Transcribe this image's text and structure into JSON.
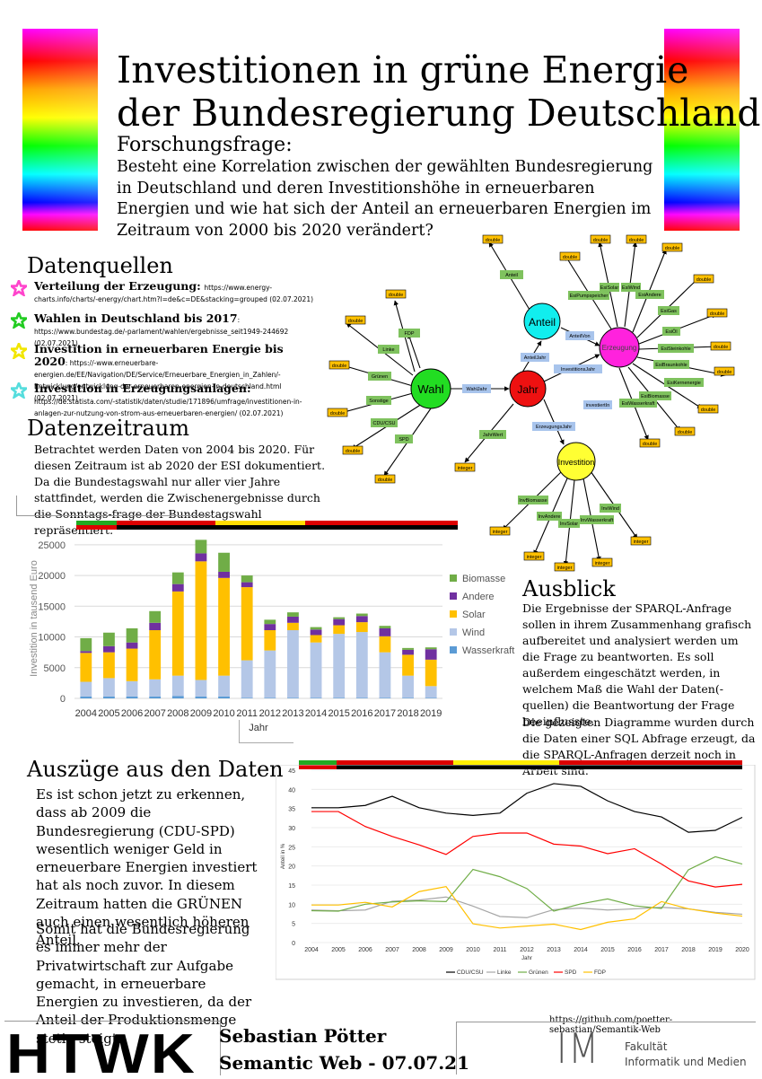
{
  "header": {
    "title_line1": "Investitionen in grüne Energie",
    "title_line2": "der Bundesregierung Deutschland",
    "question_heading": "Forschungsfrage:",
    "question_text": "Besteht eine Korrelation zwischen der gewählten Bundesregierung in Deutschland und deren Investitionshöhe in erneuerbaren Energien und wie hat sich der Anteil an erneuerbaren Energien im Zeitraum von 2000 bis 2020 verändert?"
  },
  "sources": {
    "heading": "Datenquellen",
    "items": [
      {
        "label": "Verteilung der Erzeugung:",
        "url": "https://www.energy-charts.info/charts/-energy/chart.htm?l=de&c=DE&stacking=grouped (02.07.2021)",
        "star_color": "#ff44cc"
      },
      {
        "label": "Wahlen in Deutschland bis 2017",
        "url": ": https://www.bundestag.de/-parlament/wahlen/ergebnisse_seit1949-244692 (02.07.2021)",
        "star_color": "#22cc22"
      },
      {
        "label": "Investition in erneuerbaren Energie bis 2020",
        "url": ": https://-www.erneuerbare-energien.de/EE/Navigation/DE/Service/Erneuerbare_Energien_in_Zahlen/-Entwicklung/entwicklung-der-erneuerbaren-energien-in-deutschland.html (02.07.2021)",
        "star_color": "#f2e600"
      },
      {
        "label": "Investition in Erzeugungsanlagen:",
        "url": "https://de.statista.com/-statistik/daten/studie/171896/umfrage/investitionen-in-anlagen-zur-nutzung-von-strom-aus-erneuerbaren-energien/ (02.07.2021)",
        "star_color": "#55dddd"
      }
    ]
  },
  "period": {
    "heading": "Datenzeitraum",
    "text": "Betrachtet werden Daten von 2004 bis 2020. Für diesen Zeitraum ist ab 2020 der ESI dokumentiert. Da die Bundestagswahl nur aller vier Jahre stattfindet, werden die Zwischenergebnisse durch die Sonntags-frage der Bundestagswahl repräsentiert."
  },
  "outlook": {
    "heading": "Ausblick",
    "text1": " Die Ergebnisse der SPARQL-Anfrage sollen in ihrem Zusammenhang grafisch aufbereitet und analysiert werden um die Frage zu beantworten. Es soll außerdem eingeschätzt werden, in welchem Maß die Wahl der Daten(-quellen) die Beantwortung der Frage beeinflusste.",
    "text2": "Die gezeigten Diagramme wurden durch die Daten einer SQL Abfrage erzeugt, da die SPARQL-Anfragen derzeit noch in Arbeit sind."
  },
  "excerpts": {
    "heading": "Auszüge aus den Daten",
    "text1": "Es ist schon jetzt zu erkennen, dass ab 2009 die Bundesregierung (CDU-SPD) wesentlich weniger Geld in erneuerbare Energien investiert hat als noch zuvor. In diesem Zeitraum hatten die GRÜNEN auch einen wesentlich höheren Anteil.",
    "text2": "Somit hat die Bundesregierung es immer mehr der Privatwirtschaft zur Aufgabe gemacht, in erneuerbare Energien zu investieren, da der Anteil der Produktionsmenge stetig steigt."
  },
  "graph": {
    "nodes": {
      "wahl": "Wahl",
      "jahr": "Jahr",
      "anteil": "Anteil",
      "erzeugung": "Erzeugung",
      "investition": "Investition"
    },
    "edges": {
      "wahljahr": "WahlJahr",
      "anteiljahr": "AnteilJahr",
      "anteilvon": "AnteilVon",
      "investitionsjahr": "InvestitionsJahr",
      "investiertin": "investiertIn",
      "erzeugungsjahr": "ErzeugungsJahr"
    },
    "green": {
      "anteil": "Anteil",
      "linke": "Linke",
      "fdp": "FDP",
      "gruenen": "Grünen",
      "sonstige": "Sonstige",
      "cducsu": "CDU/CSU",
      "spd": "SPD",
      "jahrwert": "JahrWert",
      "esisolar": "EsiSolar",
      "esiwind": "EsiWind",
      "esipumpspeicher": "EsiPumpspeicher",
      "esiandere": "EsiAndere",
      "esigas": "EsiGas",
      "esioel": "EsiÖl",
      "esisteinkohle": "EsiSteinkohle",
      "esibraunkohle": "EsiBraunkohle",
      "esikernenergie": "EsiKernenergie",
      "esibiomasse": "EsiBiomasse",
      "esiwasserkraft": "EsiWasserkraft",
      "invbiomasse": "InvBiomasse",
      "invandere": "InvAndere",
      "invsolar": "InvSolar",
      "invwasserkraft": "InvWasserkraft",
      "invwind": "InvWind"
    },
    "literal_double": "double",
    "literal_integer": "integer"
  },
  "chart_data": [
    {
      "type": "bar",
      "stacked": true,
      "categories": [
        "2004",
        "2005",
        "2006",
        "2007",
        "2008",
        "2009",
        "2010",
        "2011",
        "2012",
        "2013",
        "2014",
        "2015",
        "2016",
        "2017",
        "2018",
        "2019"
      ],
      "series": [
        {
          "name": "Wasserkraft",
          "color": "#5b9bd5",
          "values": [
            300,
            300,
            300,
            300,
            400,
            300,
            300,
            100,
            100,
            100,
            100,
            100,
            100,
            100,
            100,
            100
          ]
        },
        {
          "name": "Wind",
          "color": "#b4c7e7",
          "values": [
            2400,
            3000,
            2500,
            2800,
            3300,
            2700,
            3400,
            6100,
            7700,
            11000,
            9000,
            10400,
            10700,
            7400,
            3600,
            1900
          ]
        },
        {
          "name": "Solar",
          "color": "#ffc000",
          "values": [
            4700,
            4200,
            5300,
            8000,
            13700,
            19300,
            15900,
            11900,
            3300,
            1200,
            1200,
            1400,
            1600,
            2600,
            3400,
            4300
          ]
        },
        {
          "name": "Andere",
          "color": "#7030a0",
          "values": [
            300,
            1000,
            1000,
            1200,
            1200,
            1300,
            1000,
            800,
            1000,
            1000,
            900,
            1000,
            1000,
            1300,
            800,
            1700
          ]
        },
        {
          "name": "Biomasse",
          "color": "#70ad47",
          "values": [
            2100,
            2200,
            2300,
            1900,
            1900,
            2200,
            3100,
            1100,
            700,
            700,
            400,
            300,
            400,
            400,
            300,
            300
          ]
        }
      ],
      "xlabel": "Jahr",
      "ylabel": "Investition in tausend Euro",
      "ylim": [
        0,
        26000
      ],
      "yticks": [
        "0",
        "5000",
        "10000",
        "15000",
        "20000",
        "25000"
      ],
      "legend": "right"
    },
    {
      "type": "line",
      "categories": [
        "2004",
        "2005",
        "2006",
        "2007",
        "2008",
        "2009",
        "2010",
        "2011",
        "2012",
        "2013",
        "2014",
        "2015",
        "2016",
        "2017",
        "2018",
        "2019",
        "2020"
      ],
      "series": [
        {
          "name": "CDU/CSU",
          "color": "#000000",
          "values": [
            35.2,
            35.2,
            35.8,
            38.2,
            35.2,
            33.8,
            33.2,
            33.8,
            39,
            41.5,
            40.8,
            37,
            34.2,
            32.8,
            28.8,
            29.3,
            32.7
          ]
        },
        {
          "name": "Linke",
          "color": "#a6a6a6",
          "values": [
            8.5,
            8.3,
            8.5,
            10.8,
            11.1,
            11.9,
            9.5,
            6.8,
            6.5,
            8.6,
            9,
            8.5,
            8.8,
            9.2,
            8.8,
            7.9,
            7.4
          ]
        },
        {
          "name": "Grünen",
          "color": "#70ad47",
          "values": [
            8.3,
            8.2,
            10,
            10.6,
            10.9,
            10.7,
            19.1,
            17.2,
            14.1,
            8.2,
            10.1,
            11.4,
            9.6,
            8.9,
            19,
            22.4,
            20.5
          ]
        },
        {
          "name": "SPD",
          "color": "#ff0000",
          "values": [
            34.2,
            34.2,
            30.3,
            27.7,
            25.5,
            23,
            27.7,
            28.6,
            28.6,
            25.7,
            25.2,
            23.2,
            24.5,
            20.5,
            16.1,
            14.5,
            15.2
          ]
        },
        {
          "name": "FDP",
          "color": "#ffc000",
          "values": [
            9.8,
            9.8,
            10.5,
            9.3,
            13.3,
            14.6,
            4.9,
            3.8,
            4.3,
            4.8,
            3.4,
            5.3,
            6.2,
            10.7,
            8.8,
            7.7,
            6.9
          ]
        }
      ],
      "xlabel": "Jahr",
      "ylabel": "Anteil in %",
      "ylim": [
        0,
        45
      ],
      "yticks": [
        "0",
        "5",
        "10",
        "15",
        "20",
        "25",
        "30",
        "35",
        "40",
        "45"
      ],
      "legend": "bottom"
    }
  ],
  "footer": {
    "logo": "HTWK",
    "name": "Sebastian Pötter",
    "course": "Semantic Web - 07.07.21",
    "github": "https://github.com/poetter-sebastian/Semantik-Web",
    "fac_line1": "Fakultät",
    "fac_line2": "Informatik und Medien",
    "im": "IM"
  },
  "colors": {
    "black": "#000000",
    "red": "#dd0000",
    "gold": "#ffcc00",
    "green": "#22aa22"
  }
}
